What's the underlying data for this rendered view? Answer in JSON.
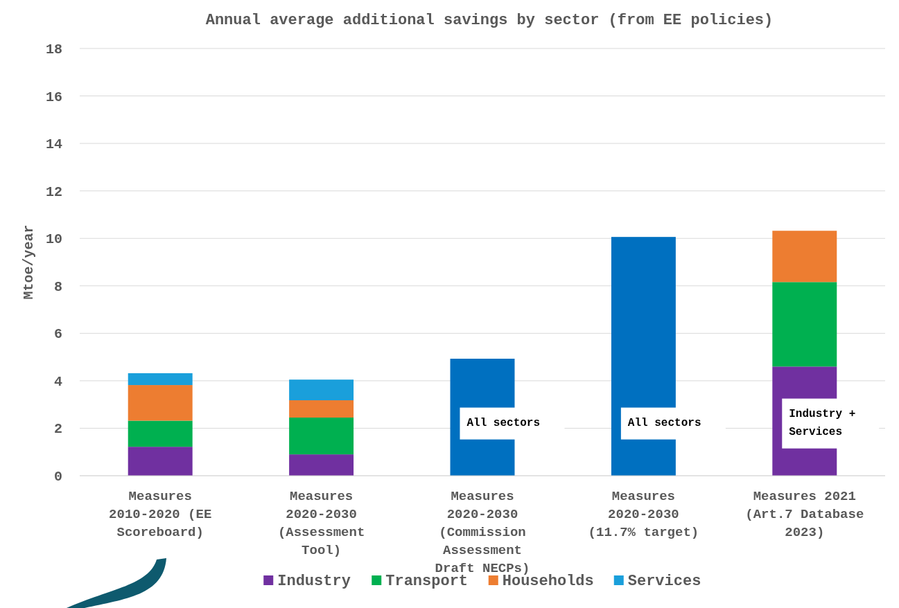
{
  "chart_data": {
    "type": "bar",
    "title": "Annual average additional savings by sector (from EE policies)",
    "ylabel": "Mtoe/year",
    "categories": [
      "Measures 2010-2020 (EE Scoreboard)",
      "Measures 2020-2030 (Assessment Tool)",
      "Measures 2020-2030 (Commission Assessment Draft NECPs)",
      "Measures 2020-2030 (11.7% target)",
      "Measures 2021 (Art.7 Database 2023)"
    ],
    "stacked": true,
    "series": [
      {
        "name": "Industry",
        "color": "#7030a0",
        "values": [
          1.22,
          0.9,
          null,
          null,
          4.6
        ]
      },
      {
        "name": "Transport",
        "color": "#00b050",
        "values": [
          1.1,
          1.55,
          null,
          null,
          3.56
        ]
      },
      {
        "name": "Households",
        "color": "#ed7d31",
        "values": [
          1.5,
          0.73,
          null,
          null,
          2.16
        ]
      },
      {
        "name": "Services",
        "color": "#1a9fdb",
        "values": [
          0.5,
          0.87,
          null,
          null,
          null
        ]
      },
      {
        "color": "#0070c0",
        "values": [
          null,
          null,
          4.93,
          10.06,
          null
        ]
      }
    ],
    "annotations": [
      "All sectors",
      "All sectors",
      "Industry + Services"
    ],
    "ylim": [
      0,
      18
    ],
    "yticks": [
      0,
      2,
      4,
      6,
      8,
      10,
      12,
      14,
      16,
      18
    ],
    "grid": "y",
    "legend": "bottom"
  }
}
